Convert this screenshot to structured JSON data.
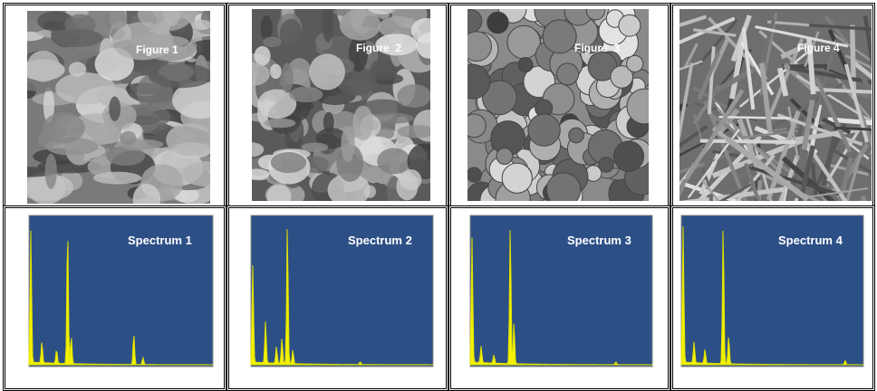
{
  "figures": [
    {
      "label": "Figure 1"
    },
    {
      "label": "Figure  2"
    },
    {
      "label": "Figure  3"
    },
    {
      "label": "Figure 4"
    }
  ],
  "spectra": [
    {
      "label": "Spectrum 1"
    },
    {
      "label": "Spectrum 2"
    },
    {
      "label": "Spectrum 3"
    },
    {
      "label": "Spectrum 4"
    }
  ]
}
